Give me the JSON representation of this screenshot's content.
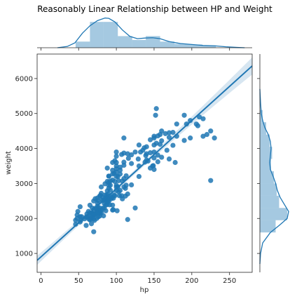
{
  "chart_data": {
    "type": "scatter",
    "title": "Reasonably Linear Relationship between HP and Weight",
    "xlabel": "hp",
    "ylabel": "weight",
    "xlim": [
      -5,
      280
    ],
    "ylim": [
      460,
      6700
    ],
    "xticks": [
      0,
      50,
      100,
      150,
      200,
      250
    ],
    "yticks": [
      1000,
      2000,
      3000,
      4000,
      5000,
      6000
    ],
    "regression": {
      "slope": 19.5,
      "intercept": 900
    },
    "color": "#1f77b4",
    "points": [
      [
        46,
        1835
      ],
      [
        46,
        1950
      ],
      [
        48,
        2000
      ],
      [
        48,
        2100
      ],
      [
        49,
        2200
      ],
      [
        52,
        2050
      ],
      [
        52,
        1900
      ],
      [
        52,
        2335
      ],
      [
        53,
        1950
      ],
      [
        54,
        2050
      ],
      [
        58,
        1990
      ],
      [
        60,
        2040
      ],
      [
        60,
        1800
      ],
      [
        61,
        2130
      ],
      [
        62,
        2050
      ],
      [
        63,
        2200
      ],
      [
        64,
        1975
      ],
      [
        65,
        2020
      ],
      [
        65,
        2160
      ],
      [
        65,
        2380
      ],
      [
        65,
        1960
      ],
      [
        67,
        2145
      ],
      [
        67,
        2000
      ],
      [
        67,
        1850
      ],
      [
        68,
        2045
      ],
      [
        68,
        2155
      ],
      [
        68,
        2300
      ],
      [
        69,
        2100
      ],
      [
        70,
        2125
      ],
      [
        70,
        2250
      ],
      [
        70,
        1990
      ],
      [
        70,
        2500
      ],
      [
        70,
        1620
      ],
      [
        71,
        1945
      ],
      [
        71,
        2110
      ],
      [
        72,
        2290
      ],
      [
        72,
        2120
      ],
      [
        72,
        2565
      ],
      [
        74,
        2000
      ],
      [
        74,
        2190
      ],
      [
        75,
        2210
      ],
      [
        75,
        2350
      ],
      [
        75,
        2150
      ],
      [
        75,
        2440
      ],
      [
        75,
        2585
      ],
      [
        76,
        2275
      ],
      [
        76,
        2510
      ],
      [
        76,
        2045
      ],
      [
        77,
        2215
      ],
      [
        78,
        2300
      ],
      [
        78,
        2070
      ],
      [
        78,
        2145
      ],
      [
        78,
        2640
      ],
      [
        78,
        2190
      ],
      [
        79,
        2660
      ],
      [
        80,
        2164
      ],
      [
        80,
        2235
      ],
      [
        80,
        2720
      ],
      [
        80,
        2900
      ],
      [
        81,
        2525
      ],
      [
        82,
        2295
      ],
      [
        82,
        2600
      ],
      [
        83,
        2075
      ],
      [
        83,
        2515
      ],
      [
        84,
        2430
      ],
      [
        84,
        2295
      ],
      [
        85,
        2565
      ],
      [
        85,
        2670
      ],
      [
        85,
        2990
      ],
      [
        86,
        2220
      ],
      [
        86,
        2380
      ],
      [
        86,
        2530
      ],
      [
        87,
        2670
      ],
      [
        88,
        2470
      ],
      [
        88,
        2605
      ],
      [
        88,
        2790
      ],
      [
        88,
        3060
      ],
      [
        88,
        3440
      ],
      [
        88,
        2400
      ],
      [
        89,
        2700
      ],
      [
        89,
        2525
      ],
      [
        90,
        2945
      ],
      [
        90,
        2490
      ],
      [
        90,
        2560
      ],
      [
        90,
        3210
      ],
      [
        90,
        3030
      ],
      [
        90,
        3210
      ],
      [
        90,
        2865
      ],
      [
        91,
        2390
      ],
      [
        92,
        2640
      ],
      [
        92,
        2810
      ],
      [
        92,
        3070
      ],
      [
        92,
        2950
      ],
      [
        93,
        2560
      ],
      [
        94,
        2600
      ],
      [
        95,
        2380
      ],
      [
        95,
        3100
      ],
      [
        95,
        3270
      ],
      [
        95,
        3600
      ],
      [
        95,
        3380
      ],
      [
        95,
        2240
      ],
      [
        96,
        2250
      ],
      [
        96,
        2580
      ],
      [
        97,
        2670
      ],
      [
        97,
        3290
      ],
      [
        98,
        2650
      ],
      [
        98,
        3060
      ],
      [
        98,
        3650
      ],
      [
        100,
        2950
      ],
      [
        100,
        3330
      ],
      [
        100,
        3420
      ],
      [
        100,
        3780
      ],
      [
        100,
        2900
      ],
      [
        100,
        3200
      ],
      [
        100,
        3500
      ],
      [
        100,
        2800
      ],
      [
        100,
        3600
      ],
      [
        100,
        3900
      ],
      [
        101,
        2220
      ],
      [
        102,
        2900
      ],
      [
        102,
        3200
      ],
      [
        103,
        2760
      ],
      [
        103,
        3080
      ],
      [
        104,
        2650
      ],
      [
        105,
        3465
      ],
      [
        105,
        3380
      ],
      [
        105,
        2800
      ],
      [
        105,
        3270
      ],
      [
        107,
        3830
      ],
      [
        107,
        2650
      ],
      [
        108,
        3070
      ],
      [
        108,
        2560
      ],
      [
        110,
        3140
      ],
      [
        110,
        3610
      ],
      [
        110,
        3520
      ],
      [
        110,
        2900
      ],
      [
        110,
        3870
      ],
      [
        110,
        4300
      ],
      [
        112,
        2640
      ],
      [
        112,
        2860
      ],
      [
        113,
        2950
      ],
      [
        113,
        3220
      ],
      [
        115,
        2700
      ],
      [
        115,
        3850
      ],
      [
        115,
        1970
      ],
      [
        116,
        3720
      ],
      [
        120,
        3570
      ],
      [
        120,
        3820
      ],
      [
        120,
        2960
      ],
      [
        125,
        3900
      ],
      [
        125,
        2300
      ],
      [
        129,
        3700
      ],
      [
        130,
        3200
      ],
      [
        130,
        4100
      ],
      [
        130,
        3500
      ],
      [
        132,
        3900
      ],
      [
        135,
        3950
      ],
      [
        137,
        4020
      ],
      [
        138,
        3610
      ],
      [
        139,
        3800
      ],
      [
        140,
        3670
      ],
      [
        140,
        3850
      ],
      [
        140,
        4050
      ],
      [
        142,
        3640
      ],
      [
        145,
        3440
      ],
      [
        145,
        3880
      ],
      [
        145,
        4250
      ],
      [
        148,
        3500
      ],
      [
        149,
        3510
      ],
      [
        150,
        3730
      ],
      [
        150,
        3900
      ],
      [
        150,
        4100
      ],
      [
        150,
        4300
      ],
      [
        150,
        3400
      ],
      [
        150,
        4350
      ],
      [
        152,
        4950
      ],
      [
        153,
        4150
      ],
      [
        155,
        3810
      ],
      [
        155,
        4360
      ],
      [
        155,
        3620
      ],
      [
        158,
        4120
      ],
      [
        158,
        4400
      ],
      [
        160,
        4500
      ],
      [
        160,
        4220
      ],
      [
        160,
        3750
      ],
      [
        165,
        4425
      ],
      [
        167,
        3950
      ],
      [
        170,
        4320
      ],
      [
        170,
        3700
      ],
      [
        170,
        4450
      ],
      [
        175,
        4090
      ],
      [
        175,
        4460
      ],
      [
        178,
        3600
      ],
      [
        180,
        4700
      ],
      [
        180,
        4350
      ],
      [
        190,
        4230
      ],
      [
        190,
        4950
      ],
      [
        193,
        4700
      ],
      [
        198,
        4300
      ],
      [
        198,
        4800
      ],
      [
        208,
        4650
      ],
      [
        210,
        4900
      ],
      [
        215,
        4350
      ],
      [
        220,
        4400
      ],
      [
        225,
        3085
      ],
      [
        225,
        4500
      ],
      [
        230,
        4300
      ],
      [
        153,
        5140
      ],
      [
        215,
        4850
      ],
      [
        206,
        4700
      ]
    ],
    "x_kde": [
      [
        22,
        0.0
      ],
      [
        35,
        0.04
      ],
      [
        45,
        0.15
      ],
      [
        55,
        0.45
      ],
      [
        65,
        0.68
      ],
      [
        75,
        0.84
      ],
      [
        85,
        0.92
      ],
      [
        90,
        0.91
      ],
      [
        98,
        0.8
      ],
      [
        108,
        0.55
      ],
      [
        118,
        0.35
      ],
      [
        128,
        0.28
      ],
      [
        138,
        0.3
      ],
      [
        148,
        0.31
      ],
      [
        158,
        0.28
      ],
      [
        170,
        0.19
      ],
      [
        185,
        0.13
      ],
      [
        200,
        0.1
      ],
      [
        215,
        0.07
      ],
      [
        230,
        0.06
      ],
      [
        245,
        0.03
      ],
      [
        260,
        0.01
      ],
      [
        270,
        0.0
      ]
    ],
    "x_hist": [
      [
        46,
        65,
        0.19
      ],
      [
        65,
        83,
        0.8
      ],
      [
        83,
        102,
        0.8
      ],
      [
        102,
        121,
        0.36
      ],
      [
        121,
        139,
        0.24
      ],
      [
        139,
        158,
        0.36
      ],
      [
        158,
        177,
        0.19
      ],
      [
        177,
        195,
        0.12
      ],
      [
        195,
        214,
        0.1
      ],
      [
        214,
        232,
        0.07
      ]
    ],
    "y_kde": [
      [
        700,
        0.0
      ],
      [
        1000,
        0.02
      ],
      [
        1300,
        0.08
      ],
      [
        1600,
        0.3
      ],
      [
        1800,
        0.55
      ],
      [
        2000,
        0.78
      ],
      [
        2200,
        0.82
      ],
      [
        2400,
        0.7
      ],
      [
        2600,
        0.58
      ],
      [
        2800,
        0.5
      ],
      [
        3000,
        0.45
      ],
      [
        3200,
        0.38
      ],
      [
        3400,
        0.3
      ],
      [
        3600,
        0.28
      ],
      [
        3800,
        0.3
      ],
      [
        4000,
        0.32
      ],
      [
        4200,
        0.3
      ],
      [
        4400,
        0.24
      ],
      [
        4600,
        0.14
      ],
      [
        4800,
        0.08
      ],
      [
        5000,
        0.04
      ],
      [
        5300,
        0.02
      ],
      [
        5700,
        0.0
      ]
    ],
    "y_hist": [
      [
        1600,
        1950,
        0.45
      ],
      [
        1950,
        2300,
        0.78
      ],
      [
        2300,
        2650,
        0.55
      ],
      [
        2650,
        3000,
        0.48
      ],
      [
        3000,
        3350,
        0.4
      ],
      [
        3350,
        3700,
        0.32
      ],
      [
        3700,
        4050,
        0.35
      ],
      [
        4050,
        4400,
        0.28
      ],
      [
        4400,
        4750,
        0.18
      ],
      [
        4750,
        5100,
        0.08
      ]
    ]
  }
}
